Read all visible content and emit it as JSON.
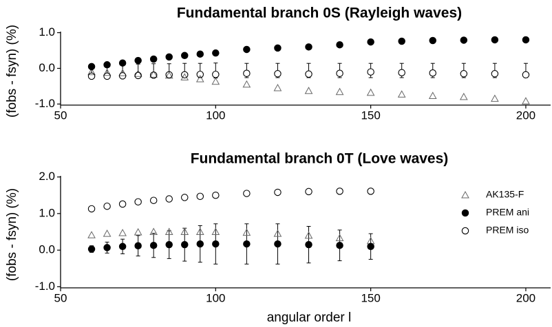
{
  "chart_data": [
    {
      "type": "scatter",
      "title": "Fundamental branch 0S (Rayleigh waves)",
      "ylabel": "(fobs - fsyn) (%)",
      "x": [
        60,
        65,
        70,
        75,
        80,
        85,
        90,
        95,
        100,
        110,
        120,
        130,
        140,
        150,
        160,
        170,
        180,
        190,
        200
      ],
      "series": [
        {
          "name": "AK135-F",
          "color": "#666666",
          "marker": "triangle",
          "values": [
            -0.1,
            -0.12,
            -0.13,
            -0.15,
            -0.17,
            -0.2,
            -0.25,
            -0.3,
            -0.37,
            -0.45,
            -0.55,
            -0.63,
            -0.66,
            -0.68,
            -0.73,
            -0.77,
            -0.8,
            -0.85,
            -0.92
          ]
        },
        {
          "name": "PREM ani",
          "color": "#000000",
          "marker": "filled-circle",
          "values": [
            0.05,
            0.1,
            0.15,
            0.22,
            0.26,
            0.32,
            0.36,
            0.4,
            0.43,
            0.53,
            0.57,
            0.6,
            0.66,
            0.74,
            0.76,
            0.78,
            0.79,
            0.8,
            0.8
          ]
        },
        {
          "name": "PREM iso",
          "color": "#000000",
          "marker": "open-circle",
          "values": [
            -0.22,
            -0.22,
            -0.21,
            -0.2,
            -0.19,
            -0.18,
            -0.18,
            -0.17,
            -0.17,
            -0.14,
            -0.15,
            -0.16,
            -0.14,
            -0.1,
            -0.12,
            -0.13,
            -0.15,
            -0.15,
            -0.18
          ]
        }
      ],
      "error_bars": {
        "values": [
          -0.02,
          -0.03,
          -0.03,
          -0.04,
          -0.04,
          -0.05,
          -0.05,
          -0.06,
          -0.06,
          -0.06,
          -0.06,
          -0.06,
          -0.06,
          -0.06,
          -0.06,
          -0.06,
          -0.06,
          -0.06,
          -0.06
        ],
        "errors": [
          0.13,
          0.14,
          0.15,
          0.16,
          0.17,
          0.18,
          0.19,
          0.2,
          0.21,
          0.2,
          0.2,
          0.2,
          0.2,
          0.2,
          0.2,
          0.2,
          0.2,
          0.2,
          0.2
        ]
      },
      "xlim": [
        50,
        208
      ],
      "ylim": [
        -1.03,
        1.03
      ],
      "xticks": [
        50,
        100,
        150,
        200
      ],
      "yticks": [
        {
          "value": -1,
          "label": "-1.0"
        },
        {
          "value": 0,
          "label": "0.0"
        },
        {
          "value": 1,
          "label": "1.0"
        }
      ]
    },
    {
      "type": "scatter",
      "title": "Fundamental branch 0T (Love waves)",
      "ylabel": "(fobs - fsyn) (%)",
      "xlabel": "angular order l",
      "x": [
        60,
        65,
        70,
        75,
        80,
        85,
        90,
        95,
        100,
        110,
        120,
        130,
        140,
        150
      ],
      "series": [
        {
          "name": "AK135-F",
          "color": "#666666",
          "marker": "triangle",
          "values": [
            0.41,
            0.45,
            0.47,
            0.49,
            0.5,
            0.5,
            0.5,
            0.5,
            0.5,
            0.48,
            0.45,
            0.4,
            0.33,
            0.25
          ]
        },
        {
          "name": "PREM ani",
          "color": "#000000",
          "marker": "filled-circle",
          "values": [
            0.03,
            0.07,
            0.1,
            0.12,
            0.13,
            0.15,
            0.15,
            0.17,
            0.17,
            0.17,
            0.17,
            0.15,
            0.13,
            0.1
          ],
          "errors": [
            0.09,
            0.15,
            0.2,
            0.28,
            0.33,
            0.38,
            0.45,
            0.5,
            0.55,
            0.55,
            0.55,
            0.5,
            0.42,
            0.35
          ]
        },
        {
          "name": "PREM iso",
          "color": "#000000",
          "marker": "open-circle",
          "values": [
            1.13,
            1.2,
            1.26,
            1.32,
            1.36,
            1.4,
            1.44,
            1.47,
            1.5,
            1.55,
            1.58,
            1.6,
            1.61,
            1.61
          ]
        }
      ],
      "legend": "right",
      "xlim": [
        50,
        208
      ],
      "ylim": [
        -1.03,
        2.03
      ],
      "xticks": [
        50,
        100,
        150,
        200
      ],
      "yticks": [
        {
          "value": -1,
          "label": "-1.0"
        },
        {
          "value": 0,
          "label": "0.0"
        },
        {
          "value": 1,
          "label": "1.0"
        },
        {
          "value": 2,
          "label": "2.0"
        }
      ]
    }
  ]
}
